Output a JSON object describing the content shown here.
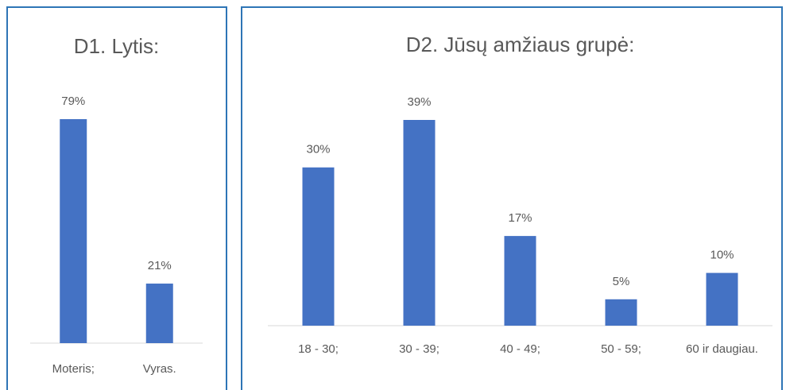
{
  "chart_data": [
    {
      "type": "bar",
      "title": "D1. Lytis:",
      "categories": [
        "Moteris;",
        "Vyras."
      ],
      "values": [
        79,
        21
      ],
      "value_labels": [
        "79%",
        "21%"
      ],
      "color": "#4472c4"
    },
    {
      "type": "bar",
      "title": "D2. Jūsų amžiaus grupė:",
      "categories": [
        "18 - 30;",
        "30 - 39;",
        "40 - 49;",
        "50 - 59;",
        "60 ir daugiau."
      ],
      "values": [
        30,
        39,
        17,
        5,
        10
      ],
      "value_labels": [
        "30%",
        "39%",
        "17%",
        "5%",
        "10%"
      ],
      "color": "#4472c4"
    }
  ]
}
